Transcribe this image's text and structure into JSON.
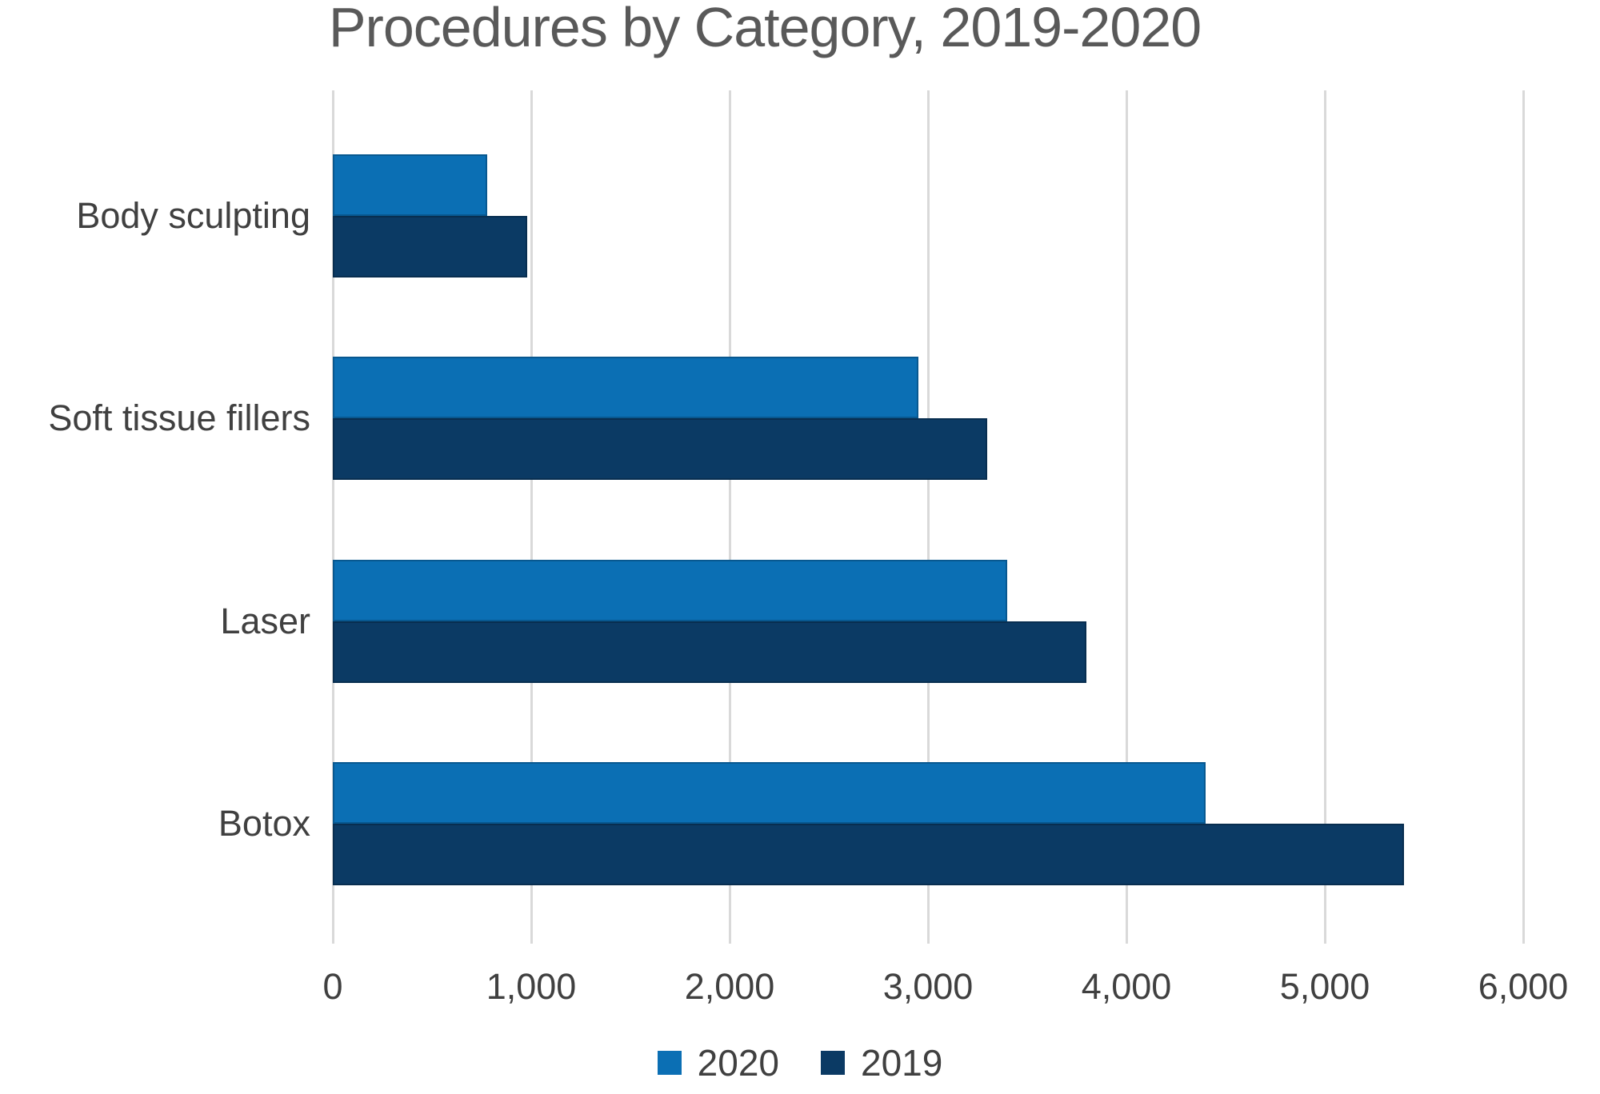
{
  "title": "Procedures by Category, 2019-2020",
  "chart_data": {
    "type": "bar",
    "orientation": "horizontal",
    "title": "Procedures by Category, 2019-2020",
    "categories": [
      "Body sculpting",
      "Soft tissue fillers",
      "Laser",
      "Botox"
    ],
    "series": [
      {
        "name": "2020",
        "color": "#0b6fb4",
        "values": [
          780,
          2950,
          3400,
          4400
        ]
      },
      {
        "name": "2019",
        "color": "#0b3a64",
        "values": [
          980,
          3300,
          3800,
          5400
        ]
      }
    ],
    "xlabel": "",
    "ylabel": "",
    "xlim": [
      0,
      6000
    ],
    "x_ticks": [
      0,
      1000,
      2000,
      3000,
      4000,
      5000,
      6000
    ],
    "x_tick_labels": [
      "0",
      "1,000",
      "2,000",
      "3,000",
      "4,000",
      "5,000",
      "6,000"
    ],
    "grid": "vertical",
    "gridline_color": "#d9d9d9",
    "legend_position": "bottom-center",
    "title_color": "#595959",
    "label_color": "#404040",
    "background_color": "#ffffff",
    "bar_order_in_group": [
      "2020",
      "2019"
    ]
  }
}
